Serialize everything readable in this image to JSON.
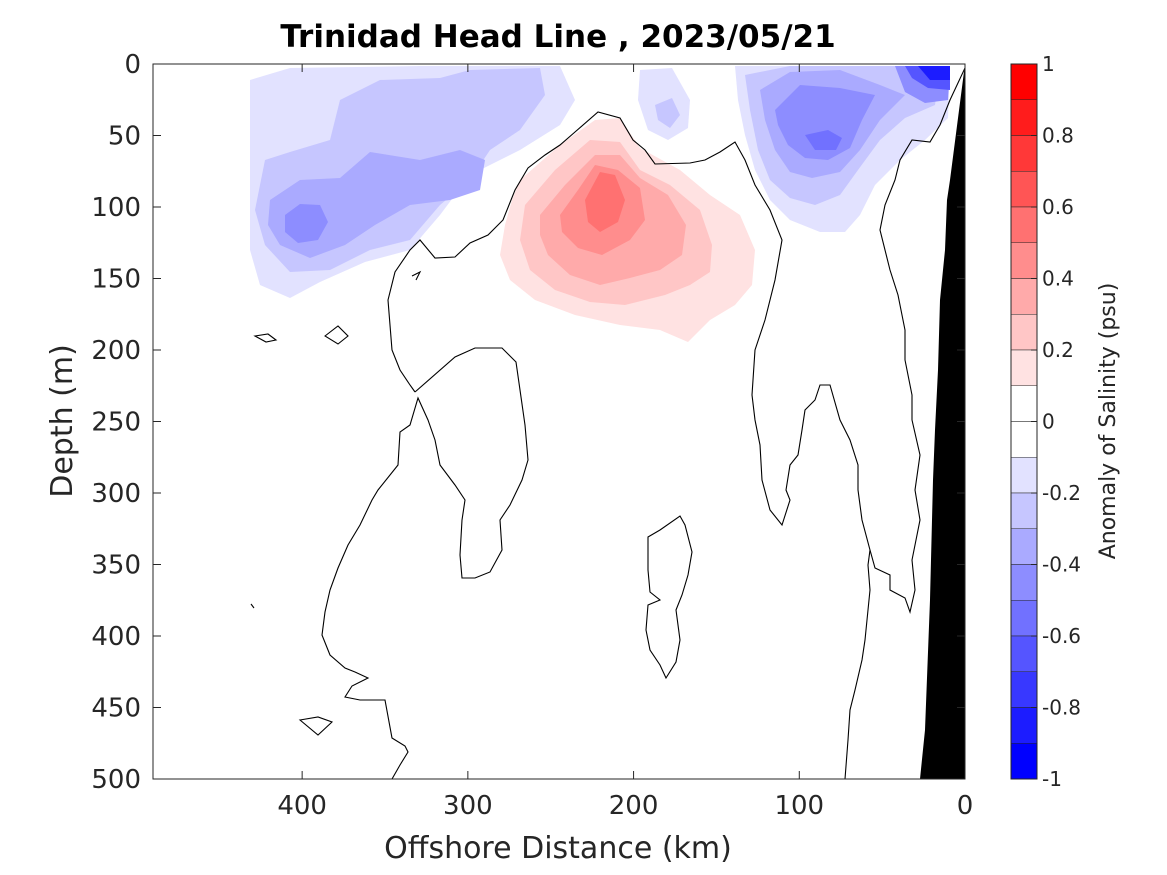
{
  "chart_data": {
    "type": "heatmap",
    "title": "Trinidad Head Line , 2023/05/21",
    "xlabel": "Offshore Distance (km)",
    "ylabel": "Depth (m)",
    "xlim": [
      490,
      0
    ],
    "ylim": [
      0,
      500
    ],
    "x_reversed": true,
    "y_reversed": true,
    "x_ticks": [
      400,
      300,
      200,
      100,
      0
    ],
    "y_ticks": [
      0,
      50,
      100,
      150,
      200,
      250,
      300,
      350,
      400,
      450,
      500
    ],
    "x_tick_labels": [
      "400",
      "300",
      "200",
      "100",
      "0"
    ],
    "y_tick_labels": [
      "0",
      "50",
      "100",
      "150",
      "200",
      "250",
      "300",
      "350",
      "400",
      "450",
      "500"
    ],
    "colorbar": {
      "label": "Anomaly of Salinity (psu)",
      "min": -1,
      "max": 1,
      "ticks": [
        1,
        0.8,
        0.6,
        0.4,
        0.2,
        0,
        -0.2,
        -0.4,
        -0.6,
        -0.8,
        -1
      ],
      "tick_labels": [
        "1",
        "0.8",
        "0.6",
        "0.4",
        "0.2",
        "0",
        "-0.2",
        "-0.4",
        "-0.6",
        "-0.8",
        "-1"
      ],
      "levels": [
        {
          "from": 0.9,
          "to": 1.0,
          "color": "#ff0000"
        },
        {
          "from": 0.8,
          "to": 0.9,
          "color": "#ff1c1c"
        },
        {
          "from": 0.7,
          "to": 0.8,
          "color": "#ff3838"
        },
        {
          "from": 0.6,
          "to": 0.7,
          "color": "#ff5555"
        },
        {
          "from": 0.5,
          "to": 0.6,
          "color": "#ff7171"
        },
        {
          "from": 0.4,
          "to": 0.5,
          "color": "#ff8d8d"
        },
        {
          "from": 0.3,
          "to": 0.4,
          "color": "#ffaaaa"
        },
        {
          "from": 0.2,
          "to": 0.3,
          "color": "#ffc6c6"
        },
        {
          "from": 0.1,
          "to": 0.2,
          "color": "#ffe2e2"
        },
        {
          "from": 0.0,
          "to": 0.1,
          "color": "#ffffff"
        },
        {
          "from": -0.1,
          "to": 0.0,
          "color": "#ffffff"
        },
        {
          "from": -0.2,
          "to": -0.1,
          "color": "#e2e2ff"
        },
        {
          "from": -0.3,
          "to": -0.2,
          "color": "#c6c6ff"
        },
        {
          "from": -0.4,
          "to": -0.3,
          "color": "#aaaaff"
        },
        {
          "from": -0.5,
          "to": -0.4,
          "color": "#8d8dff"
        },
        {
          "from": -0.6,
          "to": -0.5,
          "color": "#7171ff"
        },
        {
          "from": -0.7,
          "to": -0.6,
          "color": "#5555ff"
        },
        {
          "from": -0.8,
          "to": -0.7,
          "color": "#3838ff"
        },
        {
          "from": -0.9,
          "to": -0.8,
          "color": "#1c1cff"
        },
        {
          "from": -1.0,
          "to": -0.9,
          "color": "#0000ff"
        }
      ]
    },
    "features": [
      {
        "name": "fresh-anomaly-offshore",
        "sign": "negative",
        "center_km": 398,
        "center_depth_m": 112,
        "peak_anomaly": -0.4
      },
      {
        "name": "saline-anomaly-core",
        "sign": "positive",
        "center_km": 218,
        "center_depth_m": 100,
        "peak_anomaly": 0.5
      },
      {
        "name": "fresh-anomaly-nearshore",
        "sign": "negative",
        "center_km": 85,
        "center_depth_m": 52,
        "peak_anomaly": -0.5
      },
      {
        "name": "fresh-anomaly-surface-coast",
        "sign": "negative",
        "center_km": 20,
        "center_depth_m": 5,
        "peak_anomaly": -0.8
      }
    ],
    "bathymetry": {
      "fill_color": "#000000",
      "shelf_profile": [
        {
          "km": 0,
          "depth_m": 0
        },
        {
          "km": 13,
          "depth_m": 85
        },
        {
          "km": 18,
          "depth_m": 200
        },
        {
          "km": 24,
          "depth_m": 500
        }
      ]
    },
    "colors": {
      "negative": "#0000ff",
      "positive": "#ff0000",
      "zero_contour": "#000000",
      "axis": "#262626"
    }
  }
}
